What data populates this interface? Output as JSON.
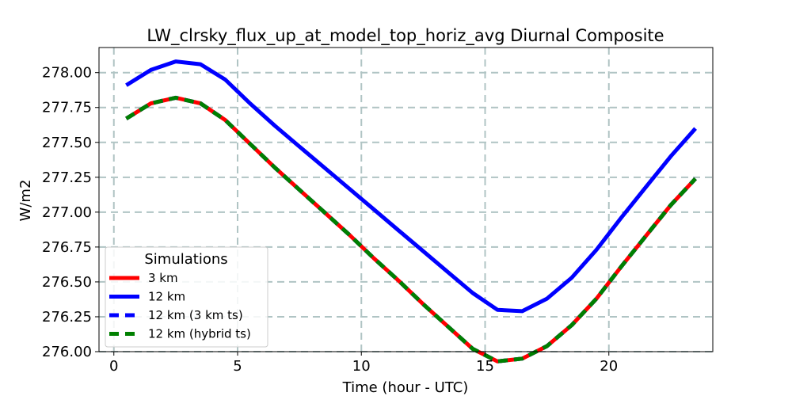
{
  "chart_data": {
    "type": "line",
    "title": "LW_clrsky_flux_up_at_model_top_horiz_avg Diurnal Composite",
    "xlabel": "Time (hour - UTC)",
    "ylabel": "W/m2",
    "xlim": [
      -0.6,
      24.2
    ],
    "ylim": [
      276.0,
      278.18
    ],
    "xticks": [
      0,
      5,
      10,
      15,
      20
    ],
    "xtick_labels": [
      "0",
      "5",
      "10",
      "15",
      "20"
    ],
    "yticks": [
      276.0,
      276.25,
      276.5,
      276.75,
      277.0,
      277.25,
      277.5,
      277.75,
      278.0
    ],
    "ytick_labels": [
      "276.00",
      "276.25",
      "276.50",
      "276.75",
      "277.00",
      "277.25",
      "277.50",
      "277.75",
      "278.00"
    ],
    "grid": true,
    "legend": {
      "title": "Simulations",
      "position": "lower-left"
    },
    "x": [
      0.5,
      1.5,
      2.5,
      3.5,
      4.5,
      5.5,
      6.5,
      7.5,
      8.5,
      9.5,
      10.5,
      11.5,
      12.5,
      13.5,
      14.5,
      15.5,
      16.5,
      17.5,
      18.5,
      19.5,
      20.5,
      21.5,
      22.5,
      23.5
    ],
    "series": [
      {
        "name": "3 km",
        "color": "#ff0000",
        "style": "solid",
        "values": [
          277.67,
          277.78,
          277.82,
          277.78,
          277.66,
          277.49,
          277.32,
          277.16,
          277.0,
          276.84,
          276.67,
          276.51,
          276.34,
          276.18,
          276.02,
          275.93,
          275.95,
          276.04,
          276.19,
          276.38,
          276.61,
          276.83,
          277.05,
          277.24
        ]
      },
      {
        "name": "12 km",
        "color": "#0000ff",
        "style": "solid",
        "values": [
          277.91,
          278.02,
          278.08,
          278.06,
          277.95,
          277.78,
          277.62,
          277.47,
          277.32,
          277.17,
          277.02,
          276.87,
          276.72,
          276.57,
          276.42,
          276.3,
          276.29,
          276.38,
          276.53,
          276.73,
          276.96,
          277.18,
          277.4,
          277.6
        ]
      },
      {
        "name": "12 km (3 km ts)",
        "color": "#0000ff",
        "style": "dashed",
        "values": [
          277.67,
          277.78,
          277.82,
          277.78,
          277.66,
          277.49,
          277.32,
          277.16,
          277.0,
          276.84,
          276.67,
          276.51,
          276.34,
          276.18,
          276.02,
          275.93,
          275.95,
          276.04,
          276.19,
          276.38,
          276.61,
          276.83,
          277.05,
          277.24
        ]
      },
      {
        "name": "12 km (hybrid ts)",
        "color": "#008000",
        "style": "dashed",
        "values": [
          277.67,
          277.78,
          277.82,
          277.78,
          277.66,
          277.49,
          277.32,
          277.16,
          277.0,
          276.84,
          276.67,
          276.51,
          276.34,
          276.18,
          276.02,
          275.93,
          275.95,
          276.04,
          276.19,
          276.38,
          276.61,
          276.83,
          277.05,
          277.24
        ]
      }
    ]
  }
}
